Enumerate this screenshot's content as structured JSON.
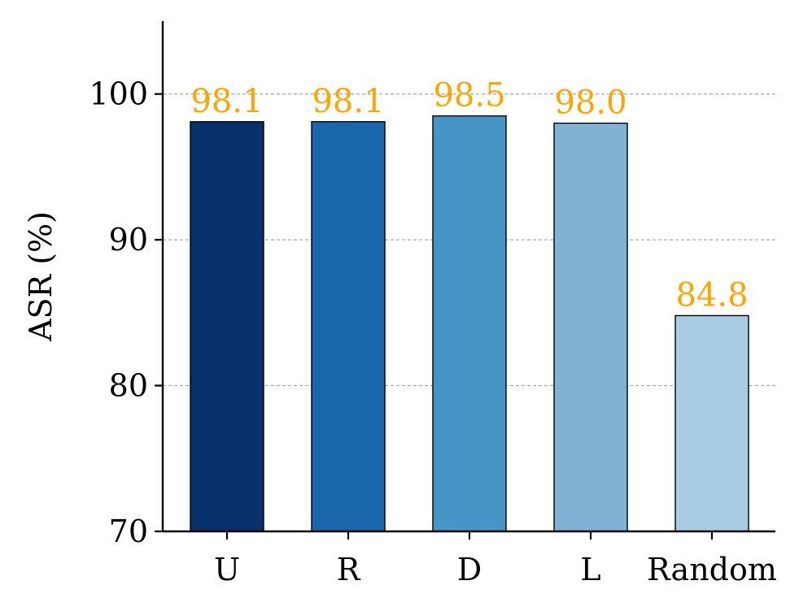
{
  "chart_data": {
    "type": "bar",
    "title": "",
    "xlabel": "",
    "ylabel": "ASR (%)",
    "categories": [
      "U",
      "R",
      "D",
      "L",
      "Random"
    ],
    "values": [
      98.1,
      98.1,
      98.5,
      98.0,
      84.8
    ],
    "value_labels": [
      "98.1",
      "98.1",
      "98.5",
      "98.0",
      "84.8"
    ],
    "bar_colors": [
      "#08306b",
      "#1b67ad",
      "#4794c7",
      "#82b2d3",
      "#a7cce4"
    ],
    "label_color": "#ffa500",
    "ylim": [
      70,
      105
    ],
    "yticks": [
      70,
      80,
      90,
      100
    ],
    "ytick_labels": [
      "70",
      "80",
      "90",
      "100"
    ],
    "grid": true,
    "grid_axis": "y",
    "legend": "none"
  }
}
